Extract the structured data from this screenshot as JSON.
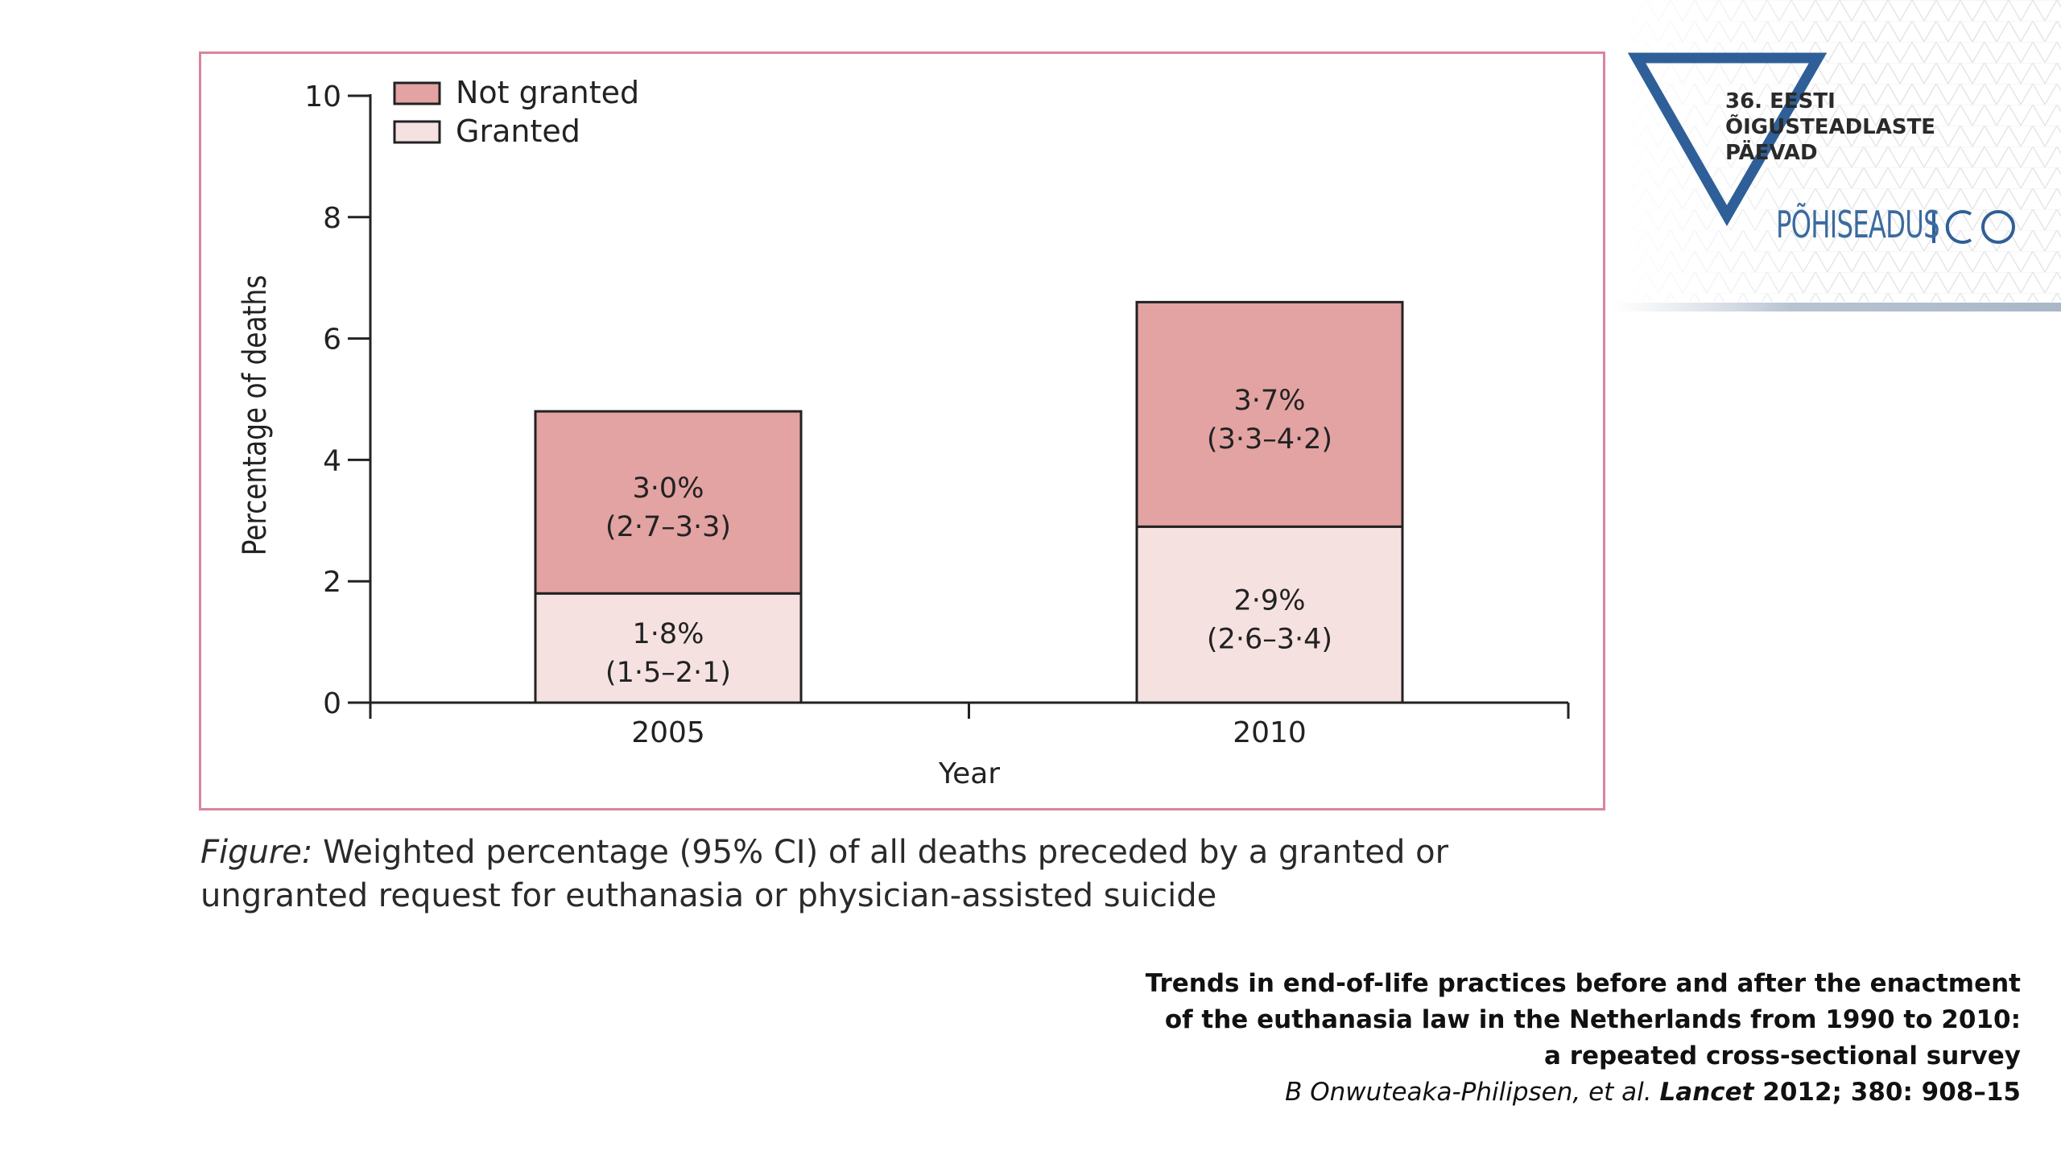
{
  "colors": {
    "not_granted": "#e2a3a2",
    "granted": "#f6e1e1",
    "frame": "#d9859b",
    "logo_blue": "#3b6a9e"
  },
  "chart_data": {
    "type": "bar",
    "stacked": true,
    "categories": [
      "2005",
      "2010"
    ],
    "series": [
      {
        "name": "Granted",
        "values": [
          1.8,
          2.9
        ],
        "labels": [
          "1·8%",
          "2·9%"
        ],
        "ci": [
          "(1·5–2·1)",
          "(2·6–3·4)"
        ]
      },
      {
        "name": "Not granted",
        "values": [
          3.0,
          3.7
        ],
        "labels": [
          "3·0%",
          "3·7%"
        ],
        "ci": [
          "(2·7–3·3)",
          "(3·3–4·2)"
        ]
      }
    ],
    "xlabel": "Year",
    "ylabel": "Percentage of deaths",
    "ylim": [
      0,
      10
    ],
    "yticks": [
      "0",
      "2",
      "4",
      "6",
      "8",
      "10"
    ],
    "legend": {
      "position": "top-left",
      "entries": [
        "Not granted",
        "Granted"
      ]
    },
    "grid": false
  },
  "caption": {
    "lead": "Figure:",
    "text": " Weighted percentage (95% CI) of all deaths preceded by a granted or ungranted request for euthanasia or physician-assisted suicide"
  },
  "citation": {
    "line1": "Trends in end-of-life practices before and after the enactment",
    "line2": "of the euthanasia law in the Netherlands from 1990 to 2010:",
    "line3": "a repeated cross-sectional survey",
    "authors": "B Onwuteaka-Philipsen,  et al. ",
    "journal": "Lancet",
    "volume": " 2012; 380: 908–15"
  },
  "logo": {
    "line1": "36. EESTI",
    "line2": "ÕIGUSTEADLASTE",
    "line3": "PÄEVAD",
    "brand": "PÕHISEADUS"
  }
}
